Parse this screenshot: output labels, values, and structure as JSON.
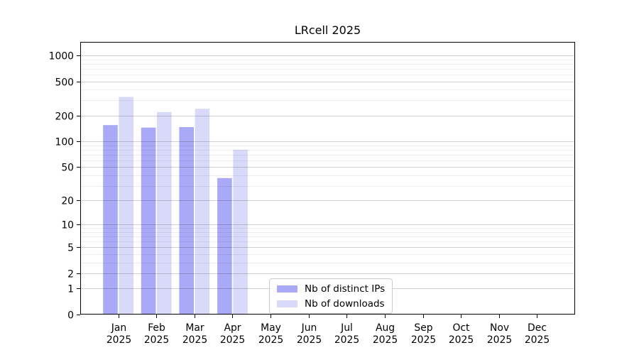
{
  "chart_data": {
    "type": "bar",
    "title": "LRcell 2025",
    "categories": [
      "Jan",
      "Feb",
      "Mar",
      "Apr",
      "May",
      "Jun",
      "Jul",
      "Aug",
      "Sep",
      "Oct",
      "Nov",
      "Dec"
    ],
    "x_tick_year_line": "2025",
    "series": [
      {
        "name": "Nb of distinct IPs",
        "color": "#a9a9f7",
        "values": [
          155,
          145,
          147,
          37,
          0,
          0,
          0,
          0,
          0,
          0,
          0,
          0
        ]
      },
      {
        "name": "Nb of downloads",
        "color": "#d9d9fa",
        "values": [
          330,
          220,
          240,
          80,
          0,
          0,
          0,
          0,
          0,
          0,
          0,
          0
        ]
      }
    ],
    "y_axis": {
      "scale": "log10(value+1)",
      "tick_values": [
        0,
        1,
        2,
        5,
        10,
        20,
        50,
        100,
        200,
        500,
        1000
      ],
      "tick_labels": [
        "0",
        "1",
        "2",
        "5",
        "10",
        "20",
        "50",
        "100",
        "200",
        "500",
        "1000"
      ],
      "minor_gridline_values": [
        3,
        4,
        6,
        7,
        8,
        9,
        30,
        40,
        60,
        70,
        80,
        90,
        300,
        400,
        600,
        700,
        800,
        900
      ],
      "top_tick_value": 1000
    },
    "grid": {
      "major": true,
      "minor": true,
      "orientation": "horizontal"
    },
    "legend": {
      "position": "lower center",
      "entries": [
        "Nb of distinct IPs",
        "Nb of downloads"
      ]
    },
    "colors": {
      "axes": "#000000",
      "major_grid": "rgba(0,0,0,0.18)",
      "minor_grid": "rgba(0,0,0,0.07)",
      "background": "#ffffff"
    }
  }
}
